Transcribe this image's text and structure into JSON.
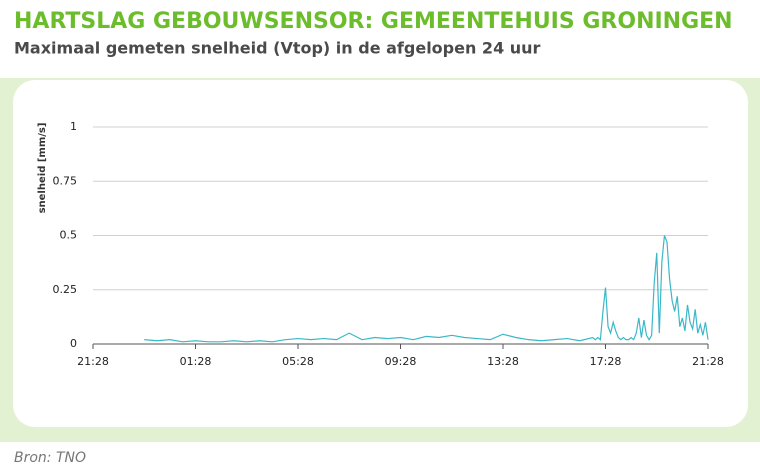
{
  "chart_data": {
    "type": "line",
    "title": "HARTSLAG GEBOUWSENSOR: GEMEENTEHUIS GRONINGEN",
    "subtitle": "Maximaal gemeten snelheid (Vtop) in de afgelopen 24 uur",
    "y_label": "snelheid [mm/s]",
    "source": "Bron: TNO",
    "grid": true,
    "xlim": [
      0,
      24
    ],
    "xticks": [
      {
        "value": 0,
        "label": "21:28"
      },
      {
        "value": 4,
        "label": "01:28"
      },
      {
        "value": 8,
        "label": "05:28"
      },
      {
        "value": 12,
        "label": "09:28"
      },
      {
        "value": 16,
        "label": "13:28"
      },
      {
        "value": 20,
        "label": "17:28"
      },
      {
        "value": 24,
        "label": "21:28"
      }
    ],
    "ylim": [
      0,
      1
    ],
    "yticks": [
      0,
      0.25,
      0.5,
      0.75,
      1
    ],
    "x": [
      2.0,
      2.5,
      3.0,
      3.5,
      4.0,
      4.5,
      5.0,
      5.5,
      6.0,
      6.5,
      7.0,
      7.5,
      8.0,
      8.5,
      9.0,
      9.5,
      10.0,
      10.5,
      11.0,
      11.5,
      12.0,
      12.5,
      13.0,
      13.5,
      14.0,
      14.5,
      15.0,
      15.5,
      16.0,
      16.5,
      17.0,
      17.5,
      18.0,
      18.5,
      19.0,
      19.5,
      19.6,
      19.7,
      19.8,
      19.9,
      20.0,
      20.1,
      20.2,
      20.3,
      20.4,
      20.5,
      20.6,
      20.7,
      20.8,
      20.9,
      21.0,
      21.1,
      21.2,
      21.3,
      21.4,
      21.5,
      21.6,
      21.7,
      21.8,
      21.9,
      22.0,
      22.1,
      22.2,
      22.3,
      22.4,
      22.5,
      22.6,
      22.7,
      22.8,
      22.9,
      23.0,
      23.1,
      23.2,
      23.3,
      23.4,
      23.5,
      23.6,
      23.7,
      23.8,
      23.9,
      24.0
    ],
    "series": [
      {
        "name": "Vtop",
        "color": "#3bb8c8",
        "values": [
          0.02,
          0.015,
          0.02,
          0.01,
          0.015,
          0.01,
          0.01,
          0.015,
          0.01,
          0.015,
          0.01,
          0.02,
          0.025,
          0.02,
          0.025,
          0.02,
          0.05,
          0.02,
          0.03,
          0.025,
          0.03,
          0.02,
          0.035,
          0.03,
          0.04,
          0.03,
          0.025,
          0.02,
          0.045,
          0.03,
          0.02,
          0.015,
          0.02,
          0.025,
          0.015,
          0.03,
          0.02,
          0.03,
          0.02,
          0.15,
          0.26,
          0.08,
          0.05,
          0.1,
          0.06,
          0.03,
          0.02,
          0.03,
          0.02,
          0.02,
          0.03,
          0.02,
          0.05,
          0.12,
          0.03,
          0.11,
          0.04,
          0.02,
          0.04,
          0.28,
          0.42,
          0.05,
          0.38,
          0.5,
          0.47,
          0.3,
          0.2,
          0.15,
          0.22,
          0.08,
          0.12,
          0.06,
          0.18,
          0.1,
          0.07,
          0.16,
          0.05,
          0.09,
          0.04,
          0.1,
          0.02
        ]
      }
    ]
  }
}
